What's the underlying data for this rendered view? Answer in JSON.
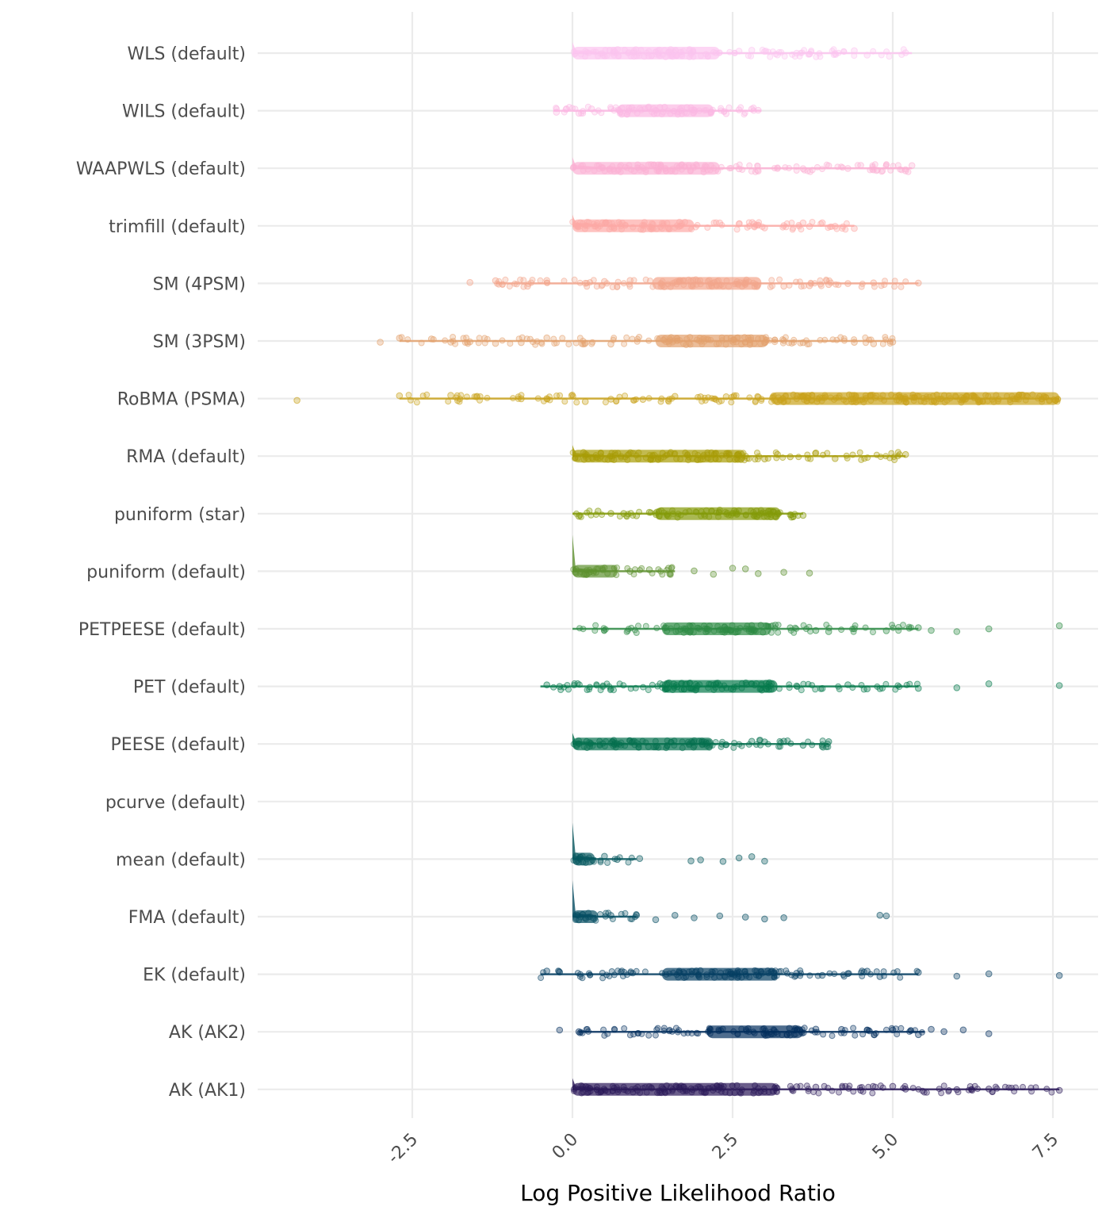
{
  "chart_data": {
    "type": "scatter",
    "subtype": "raincloud (half-density + jittered points + interval line) by method",
    "title": "",
    "xlabel": "Log Positive Likelihood Ratio",
    "ylabel": "",
    "xlim": [
      -4.98,
      8.1
    ],
    "x_ticks": [
      -2.5,
      0.0,
      2.5,
      5.0,
      7.5
    ],
    "x_tick_labels": [
      "-2.5",
      "0.0",
      "2.5",
      "5.0",
      "7.5"
    ],
    "x_tick_label_rotation": "45 degrees",
    "grid": true,
    "legend": "none",
    "categories": [
      "WLS (default)",
      "WILS (default)",
      "WAAPWLS (default)",
      "trimfill (default)",
      "SM (4PSM)",
      "SM (3PSM)",
      "RoBMA (PSMA)",
      "RMA (default)",
      "puniform (star)",
      "puniform (default)",
      "PETPEESE (default)",
      "PET (default)",
      "PEESE (default)",
      "pcurve (default)",
      "mean (default)",
      "FMA (default)",
      "EK (default)",
      "AK (AK2)",
      "AK (AK1)"
    ],
    "series": [
      {
        "name": "WLS (default)",
        "color": "#fcc5f0",
        "range": [
          0.0,
          5.3
        ],
        "dense_range": [
          0.0,
          2.3
        ],
        "outliers": [
          2.6,
          2.8,
          3.0,
          3.2,
          3.5,
          3.7,
          4.1,
          4.4,
          4.6,
          5.2
        ],
        "spike_at_zero": true
      },
      {
        "name": "WILS (default)",
        "color": "#fbb8e3",
        "range": [
          -0.3,
          2.95
        ],
        "dense_range": [
          0.7,
          2.2
        ],
        "outliers": [
          -0.25,
          -0.1,
          0.1,
          0.3,
          2.4,
          2.6,
          2.8,
          2.9
        ],
        "spike_at_zero": false
      },
      {
        "name": "WAAPWLS (default)",
        "color": "#fbb1d4",
        "range": [
          0.0,
          5.3
        ],
        "dense_range": [
          0.0,
          2.3
        ],
        "outliers": [
          2.6,
          2.9,
          3.2,
          3.6,
          4.0,
          4.3,
          4.5,
          5.2,
          5.3
        ],
        "spike_at_zero": true
      },
      {
        "name": "trimfill (default)",
        "color": "#fdaaa6",
        "range": [
          0.0,
          4.4
        ],
        "dense_range": [
          0.0,
          1.9
        ],
        "outliers": [
          2.3,
          2.6,
          2.9,
          3.0,
          3.3,
          3.6,
          3.7,
          3.9,
          4.1,
          4.4
        ],
        "spike_at_zero": true
      },
      {
        "name": "SM (4PSM)",
        "color": "#f3a58c",
        "range": [
          -1.2,
          5.4
        ],
        "dense_range": [
          1.25,
          2.95
        ],
        "outliers": [
          -1.6,
          -1.2,
          -0.7,
          -0.4,
          0.2,
          0.5,
          0.9,
          3.3,
          3.7,
          4.0,
          4.3,
          4.7,
          5.4
        ],
        "spike_at_zero": false
      },
      {
        "name": "SM (3PSM)",
        "color": "#e3a16d",
        "range": [
          -2.7,
          5.0
        ],
        "dense_range": [
          1.3,
          3.05
        ],
        "outliers": [
          -3.0,
          -2.7,
          -2.2,
          -1.9,
          -1.6,
          -1.2,
          -0.8,
          -0.4,
          0.2,
          0.6,
          3.3,
          3.6,
          4.4,
          4.7,
          5.0
        ],
        "spike_at_zero": false
      },
      {
        "name": "RoBMA (PSMA)",
        "color": "#c9a21c",
        "range": [
          -2.7,
          7.6
        ],
        "dense_range": [
          3.1,
          7.6
        ],
        "outliers": [
          -4.3,
          -2.7,
          -1.9,
          -1.5,
          -0.8,
          -0.4,
          0.2,
          0.6,
          1.1,
          1.6,
          2.0,
          2.4,
          2.9
        ],
        "spike_at_zero": false
      },
      {
        "name": "RMA (default)",
        "color": "#a89c06",
        "range": [
          0.0,
          5.2
        ],
        "dense_range": [
          0.0,
          2.7
        ],
        "outliers": [
          3.0,
          3.2,
          3.4,
          3.8,
          4.1,
          5.2
        ],
        "spike_at_zero": true
      },
      {
        "name": "puniform (star)",
        "color": "#849a0a",
        "range": [
          0.0,
          3.6
        ],
        "dense_range": [
          1.3,
          3.25
        ],
        "outliers": [
          0.1,
          0.4,
          0.6,
          0.8,
          1.0,
          1.2,
          3.4,
          3.6
        ],
        "spike_at_zero": false
      },
      {
        "name": "puniform (default)",
        "color": "#5e9130",
        "range": [
          0.0,
          1.6
        ],
        "dense_range": [
          0.0,
          0.7
        ],
        "outliers": [
          0.9,
          1.2,
          1.5,
          1.9,
          2.2,
          2.5,
          2.7,
          2.9,
          3.3,
          3.7
        ],
        "spike_at_zero": true
      },
      {
        "name": "PETPEESE (default)",
        "color": "#2d8b44",
        "range": [
          0.0,
          5.4
        ],
        "dense_range": [
          1.4,
          3.1
        ],
        "outliers": [
          3.4,
          3.8,
          4.0,
          4.4,
          4.9,
          5.4,
          5.6,
          6.0,
          6.5,
          7.6
        ],
        "spike_at_zero": false
      },
      {
        "name": "PET (default)",
        "color": "#067a4c",
        "range": [
          -0.5,
          5.4
        ],
        "dense_range": [
          1.4,
          3.2
        ],
        "outliers": [
          -0.4,
          -0.2,
          3.5,
          3.9,
          4.3,
          4.6,
          4.8,
          5.4,
          6.0,
          6.5,
          7.6
        ],
        "spike_at_zero": false
      },
      {
        "name": "PEESE (default)",
        "color": "#05704f",
        "range": [
          0.0,
          4.0
        ],
        "dense_range": [
          0.0,
          2.2
        ],
        "outliers": [
          2.4,
          2.8,
          3.0,
          3.3,
          3.6,
          4.0
        ],
        "spike_at_zero": true
      },
      {
        "name": "pcurve (default)",
        "color": "#0a6a5a",
        "range": null,
        "dense_range": null,
        "outliers": [],
        "spike_at_zero": false
      },
      {
        "name": "mean (default)",
        "color": "#07585f",
        "range": [
          0.0,
          1.0
        ],
        "dense_range": [
          0.0,
          0.35
        ],
        "outliers": [
          0.5,
          0.7,
          1.05,
          1.85,
          2.0,
          2.35,
          2.6,
          2.8,
          3.0
        ],
        "spike_at_zero": true
      },
      {
        "name": "FMA (default)",
        "color": "#064e63",
        "range": [
          0.0,
          1.0
        ],
        "dense_range": [
          0.0,
          0.4
        ],
        "outliers": [
          0.6,
          1.0,
          1.3,
          1.6,
          1.9,
          2.3,
          2.7,
          3.0,
          3.3,
          4.8,
          4.9
        ],
        "spike_at_zero": true
      },
      {
        "name": "EK (default)",
        "color": "#053f63",
        "range": [
          -0.5,
          5.4
        ],
        "dense_range": [
          1.4,
          3.2
        ],
        "outliers": [
          -0.4,
          -0.2,
          3.5,
          3.9,
          4.3,
          4.6,
          4.8,
          5.4,
          6.0,
          6.5,
          7.6
        ],
        "spike_at_zero": false
      },
      {
        "name": "AK (AK2)",
        "color": "#042f5e",
        "range": [
          0.1,
          5.5
        ],
        "dense_range": [
          2.1,
          3.6
        ],
        "outliers": [
          -0.2,
          0.1,
          3.8,
          4.2,
          4.6,
          5.0,
          5.4,
          5.6,
          5.8,
          6.1,
          6.5
        ],
        "spike_at_zero": false
      },
      {
        "name": "AK (AK1)",
        "color": "#2c1a5a",
        "range": [
          0.0,
          7.6
        ],
        "dense_range": [
          0.0,
          3.2
        ],
        "outliers": [
          3.5,
          3.8,
          4.5,
          5.0,
          5.2,
          6.0,
          6.5,
          7.6
        ],
        "spike_at_zero": true
      }
    ]
  }
}
